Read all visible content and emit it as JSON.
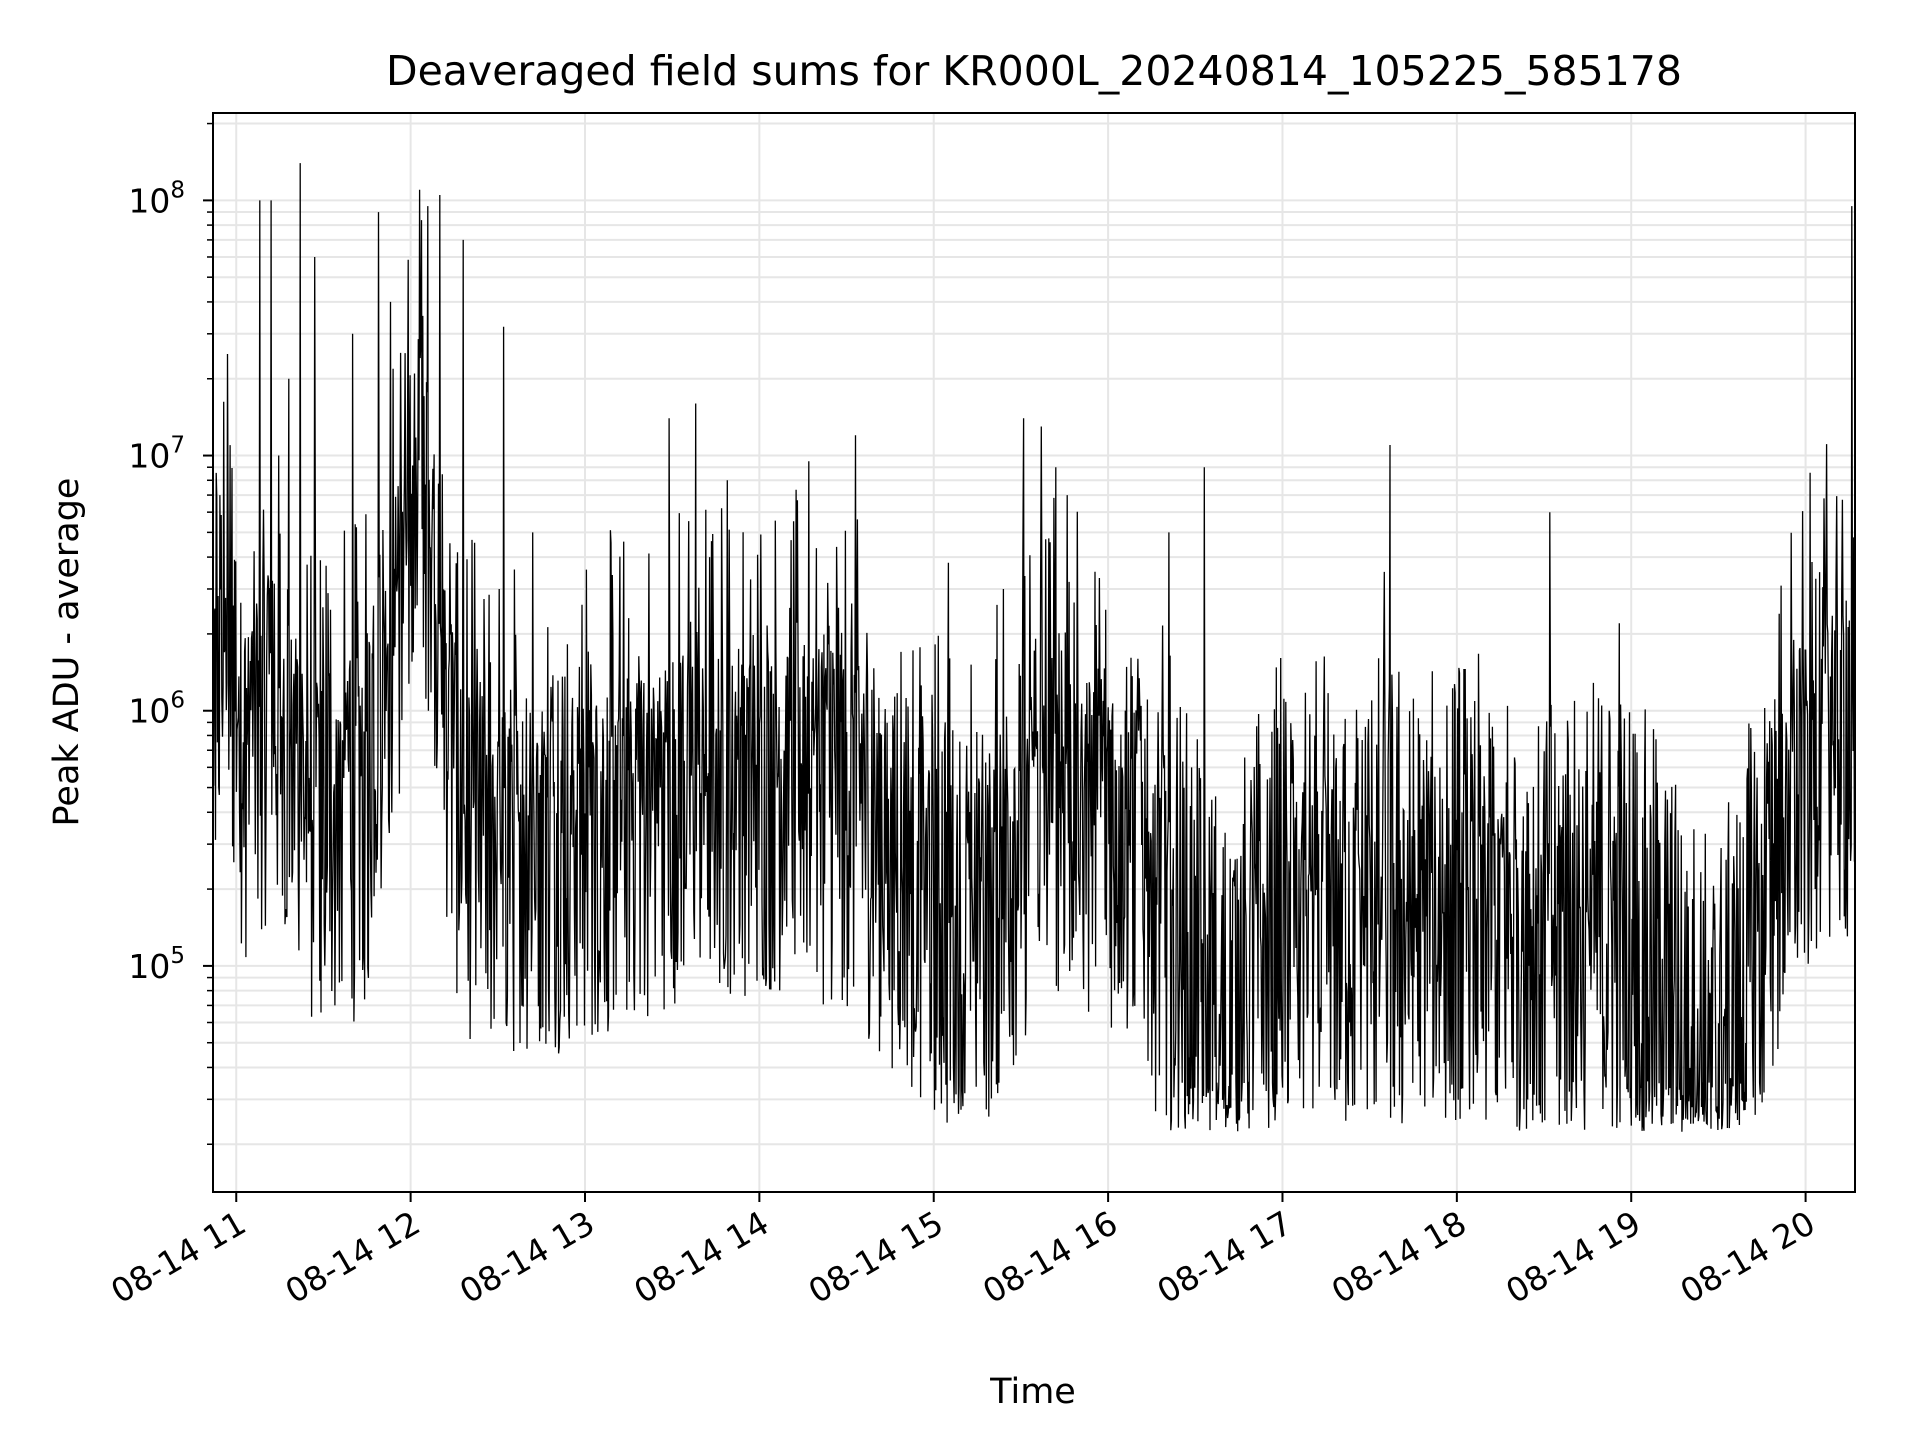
{
  "chart_data": {
    "type": "line",
    "title": "Deaveraged field sums for KR000L_20240814_105225_585178",
    "xlabel": "Time",
    "ylabel": "Peak ADU - average",
    "yscale": "log",
    "xlim": [
      "2024-08-14 10:52",
      "2024-08-14 20:17"
    ],
    "ylim": [
      13000,
      220000000
    ],
    "grid": true,
    "line_color": "#000000",
    "grid_color": "#e6e6e6",
    "x_ticks": [
      {
        "t": "2024-08-14 11:00",
        "label": "08-14 11"
      },
      {
        "t": "2024-08-14 12:00",
        "label": "08-14 12"
      },
      {
        "t": "2024-08-14 13:00",
        "label": "08-14 13"
      },
      {
        "t": "2024-08-14 14:00",
        "label": "08-14 14"
      },
      {
        "t": "2024-08-14 15:00",
        "label": "08-14 15"
      },
      {
        "t": "2024-08-14 16:00",
        "label": "08-14 16"
      },
      {
        "t": "2024-08-14 17:00",
        "label": "08-14 17"
      },
      {
        "t": "2024-08-14 18:00",
        "label": "08-14 18"
      },
      {
        "t": "2024-08-14 19:00",
        "label": "08-14 19"
      },
      {
        "t": "2024-08-14 20:00",
        "label": "08-14 20"
      }
    ],
    "y_ticks": [
      {
        "value": 100000,
        "base": "10",
        "exp": "5"
      },
      {
        "value": 1000000,
        "base": "10",
        "exp": "6"
      },
      {
        "value": 10000000,
        "base": "10",
        "exp": "7"
      },
      {
        "value": 100000000,
        "base": "10",
        "exp": "8"
      }
    ],
    "series": [
      {
        "values": [
          [
            "2024-08-14 10:52",
            1200000
          ],
          [
            "2024-08-14 10:56",
            2500000
          ],
          [
            "2024-08-14 11:00",
            1500000
          ],
          [
            "2024-08-14 11:04",
            900000
          ],
          [
            "2024-08-14 11:08",
            1300000
          ],
          [
            "2024-08-14 11:12",
            1500000
          ],
          [
            "2024-08-14 11:16",
            1000000
          ],
          [
            "2024-08-14 11:20",
            700000
          ],
          [
            "2024-08-14 11:24",
            500000
          ],
          [
            "2024-08-14 11:28",
            600000
          ],
          [
            "2024-08-14 11:32",
            550000
          ],
          [
            "2024-08-14 11:36",
            500000
          ],
          [
            "2024-08-14 11:40",
            600000
          ],
          [
            "2024-08-14 11:44",
            550000
          ],
          [
            "2024-08-14 11:48",
            1500000
          ],
          [
            "2024-08-14 11:52",
            2500000
          ],
          [
            "2024-08-14 11:56",
            4000000
          ],
          [
            "2024-08-14 12:00",
            8000000
          ],
          [
            "2024-08-14 12:04",
            12000000
          ],
          [
            "2024-08-14 12:08",
            6000000
          ],
          [
            "2024-08-14 12:12",
            1500000
          ],
          [
            "2024-08-14 12:16",
            700000
          ],
          [
            "2024-08-14 12:20",
            500000
          ],
          [
            "2024-08-14 12:25",
            450000
          ],
          [
            "2024-08-14 12:30",
            400000
          ],
          [
            "2024-08-14 12:40",
            420000
          ],
          [
            "2024-08-14 12:50",
            450000
          ],
          [
            "2024-08-14 13:00",
            480000
          ],
          [
            "2024-08-14 13:15",
            550000
          ],
          [
            "2024-08-14 13:30",
            700000
          ],
          [
            "2024-08-14 13:45",
            750000
          ],
          [
            "2024-08-14 14:00",
            750000
          ],
          [
            "2024-08-14 14:15",
            750000
          ],
          [
            "2024-08-14 14:30",
            650000
          ],
          [
            "2024-08-14 14:45",
            400000
          ],
          [
            "2024-08-14 15:00",
            250000
          ],
          [
            "2024-08-14 15:10",
            150000
          ],
          [
            "2024-08-14 15:20",
            250000
          ],
          [
            "2024-08-14 15:30",
            450000
          ],
          [
            "2024-08-14 15:40",
            800000
          ],
          [
            "2024-08-14 15:50",
            600000
          ],
          [
            "2024-08-14 16:00",
            550000
          ],
          [
            "2024-08-14 16:10",
            450000
          ],
          [
            "2024-08-14 16:20",
            200000
          ],
          [
            "2024-08-14 16:30",
            80000
          ],
          [
            "2024-08-14 16:40",
            50000
          ],
          [
            "2024-08-14 16:50",
            100000
          ],
          [
            "2024-08-14 17:00",
            200000
          ],
          [
            "2024-08-14 17:15",
            200000
          ],
          [
            "2024-08-14 17:30",
            180000
          ],
          [
            "2024-08-14 17:45",
            170000
          ],
          [
            "2024-08-14 18:00",
            180000
          ],
          [
            "2024-08-14 18:15",
            170000
          ],
          [
            "2024-08-14 18:30",
            160000
          ],
          [
            "2024-08-14 18:45",
            150000
          ],
          [
            "2024-08-14 19:00",
            130000
          ],
          [
            "2024-08-14 19:10",
            80000
          ],
          [
            "2024-08-14 19:20",
            45000
          ],
          [
            "2024-08-14 19:30",
            35000
          ],
          [
            "2024-08-14 19:38",
            60000
          ],
          [
            "2024-08-14 19:45",
            200000
          ],
          [
            "2024-08-14 19:52",
            500000
          ],
          [
            "2024-08-14 20:00",
            700000
          ],
          [
            "2024-08-14 20:04",
            1200000
          ],
          [
            "2024-08-14 20:10",
            1300000
          ],
          [
            "2024-08-14 20:15",
            1000000
          ],
          [
            "2024-08-14 20:17",
            500000
          ]
        ],
        "spikes": [
          [
            "2024-08-14 10:57",
            25000000
          ],
          [
            "2024-08-14 11:08",
            100000000
          ],
          [
            "2024-08-14 11:12",
            100000000
          ],
          [
            "2024-08-14 11:18",
            20000000
          ],
          [
            "2024-08-14 11:22",
            140000000
          ],
          [
            "2024-08-14 11:27",
            60000000
          ],
          [
            "2024-08-14 11:40",
            30000000
          ],
          [
            "2024-08-14 11:49",
            90000000
          ],
          [
            "2024-08-14 11:53",
            40000000
          ],
          [
            "2024-08-14 12:03",
            110000000
          ],
          [
            "2024-08-14 12:06",
            95000000
          ],
          [
            "2024-08-14 12:10",
            105000000
          ],
          [
            "2024-08-14 12:18",
            70000000
          ],
          [
            "2024-08-14 12:32",
            32000000
          ],
          [
            "2024-08-14 12:42",
            5000000
          ],
          [
            "2024-08-14 12:59",
            2600000
          ],
          [
            "2024-08-14 13:29",
            14000000
          ],
          [
            "2024-08-14 13:38",
            16000000
          ],
          [
            "2024-08-14 13:49",
            8000000
          ],
          [
            "2024-08-14 14:17",
            9500000
          ],
          [
            "2024-08-14 14:33",
            12000000
          ],
          [
            "2024-08-14 15:05",
            3800000
          ],
          [
            "2024-08-14 15:24",
            3000000
          ],
          [
            "2024-08-14 15:31",
            14000000
          ],
          [
            "2024-08-14 15:37",
            13000000
          ],
          [
            "2024-08-14 15:42",
            9000000
          ],
          [
            "2024-08-14 15:46",
            7000000
          ],
          [
            "2024-08-14 16:21",
            5000000
          ],
          [
            "2024-08-14 16:33",
            9000000
          ],
          [
            "2024-08-14 17:35",
            3500000
          ],
          [
            "2024-08-14 17:37",
            11000000
          ],
          [
            "2024-08-14 18:32",
            6000000
          ],
          [
            "2024-08-14 18:56",
            2200000
          ],
          [
            "2024-08-14 19:51",
            2400000
          ],
          [
            "2024-08-14 20:16",
            95000000
          ]
        ]
      }
    ]
  }
}
